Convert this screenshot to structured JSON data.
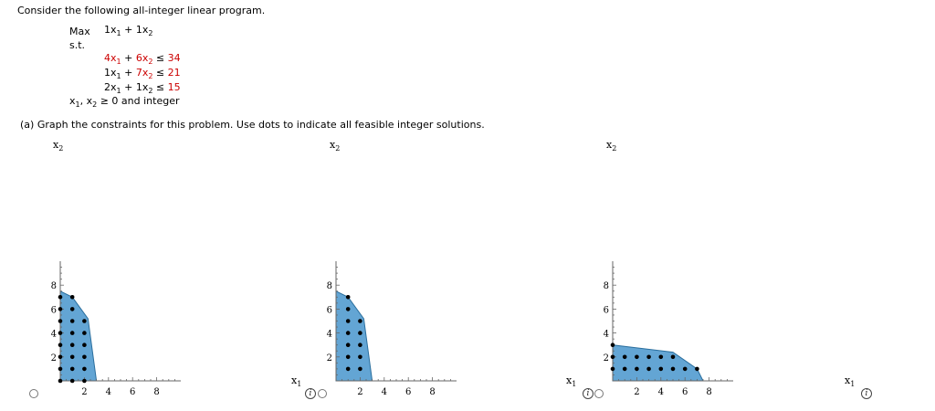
{
  "problem": {
    "intro": "Consider the following all-integer linear program.",
    "objective_label": "Max",
    "objective_expr": {
      "c1": "1x",
      "s1": "1",
      "op": " + ",
      "c2": "1x",
      "s2": "2"
    },
    "st_label": "s.t.",
    "constraints": [
      {
        "a": "4x",
        "s1": "1",
        "op": " + ",
        "b": "6x",
        "s2": "2",
        "rel": " ≤ ",
        "rhs": "34"
      },
      {
        "a": "1x",
        "s1": "1",
        "op": " + ",
        "b": "7x",
        "s2": "2",
        "rel": " ≤ ",
        "rhs": "21"
      },
      {
        "a": "2x",
        "s1": "1",
        "op": " + ",
        "b": "1x",
        "s2": "2",
        "rel": " ≤ ",
        "rhs": "15"
      }
    ],
    "nonneg": {
      "x": "x",
      "s1": "1",
      "sep": ", x",
      "s2": "2",
      "text": " ≥ 0 and integer"
    }
  },
  "part_a": "(a)  Graph the constraints for this problem. Use dots to indicate all feasible integer solutions.",
  "axis_labels": {
    "x": "x",
    "xs": "1",
    "y": "x",
    "ys": "2"
  },
  "colors": {
    "region_fill": "#63a5d4",
    "region_stroke": "#2b6f9e",
    "dot": "#000000"
  },
  "graphs": [
    {
      "chart_data": {
        "type": "scatter",
        "xlim": [
          0,
          10
        ],
        "ylim": [
          0,
          10
        ],
        "xticks": [
          2,
          4,
          6,
          8
        ],
        "yticks": [
          2,
          4,
          6,
          8
        ],
        "region": [
          [
            0,
            0
          ],
          [
            0,
            7.5
          ],
          [
            1,
            7
          ],
          [
            2.3,
            5.2
          ],
          [
            3,
            0
          ]
        ],
        "points": [
          [
            0,
            0
          ],
          [
            0,
            1
          ],
          [
            0,
            2
          ],
          [
            0,
            3
          ],
          [
            0,
            4
          ],
          [
            0,
            5
          ],
          [
            0,
            6
          ],
          [
            0,
            7
          ],
          [
            1,
            0
          ],
          [
            1,
            1
          ],
          [
            1,
            2
          ],
          [
            1,
            3
          ],
          [
            1,
            4
          ],
          [
            1,
            5
          ],
          [
            1,
            6
          ],
          [
            1,
            7
          ],
          [
            2,
            0
          ],
          [
            2,
            1
          ],
          [
            2,
            2
          ],
          [
            2,
            3
          ],
          [
            2,
            4
          ],
          [
            2,
            5
          ]
        ]
      }
    },
    {
      "chart_data": {
        "type": "scatter",
        "xlim": [
          0,
          10
        ],
        "ylim": [
          0,
          10
        ],
        "xticks": [
          2,
          4,
          6,
          8
        ],
        "yticks": [
          2,
          4,
          6,
          8
        ],
        "region": [
          [
            0,
            0
          ],
          [
            0,
            7.5
          ],
          [
            1,
            7
          ],
          [
            2.3,
            5.2
          ],
          [
            3,
            0
          ]
        ],
        "points": [
          [
            1,
            1
          ],
          [
            1,
            2
          ],
          [
            1,
            3
          ],
          [
            1,
            4
          ],
          [
            1,
            5
          ],
          [
            1,
            6
          ],
          [
            1,
            7
          ],
          [
            2,
            1
          ],
          [
            2,
            2
          ],
          [
            2,
            3
          ],
          [
            2,
            4
          ],
          [
            2,
            5
          ]
        ]
      }
    },
    {
      "chart_data": {
        "type": "scatter",
        "xlim": [
          0,
          10
        ],
        "ylim": [
          0,
          10
        ],
        "xticks": [
          2,
          4,
          6,
          8
        ],
        "yticks": [
          2,
          4,
          6,
          8
        ],
        "region": [
          [
            0,
            0
          ],
          [
            0,
            3
          ],
          [
            5,
            2.4
          ],
          [
            7,
            1
          ],
          [
            7.5,
            0
          ]
        ],
        "points": [
          [
            0,
            1
          ],
          [
            0,
            2
          ],
          [
            0,
            3
          ],
          [
            1,
            1
          ],
          [
            1,
            2
          ],
          [
            2,
            1
          ],
          [
            2,
            2
          ],
          [
            3,
            1
          ],
          [
            3,
            2
          ],
          [
            4,
            1
          ],
          [
            4,
            2
          ],
          [
            5,
            1
          ],
          [
            5,
            2
          ],
          [
            6,
            1
          ],
          [
            7,
            1
          ]
        ]
      }
    }
  ]
}
